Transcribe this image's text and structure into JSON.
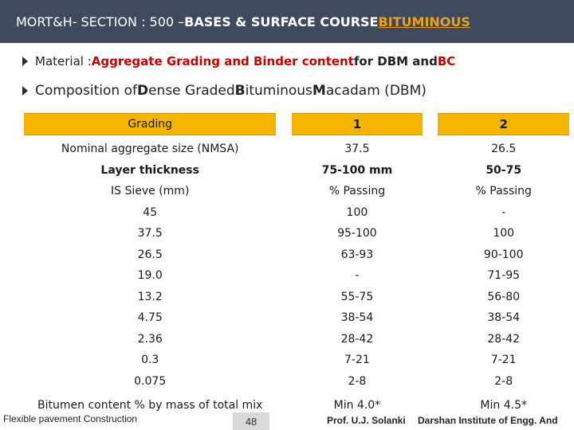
{
  "header": {
    "title_prefix": "MORT&H- SECTION : 500 – ",
    "title_bold": "BASES  & SURFACE COURSE ",
    "title_accent": "BITUMINOUS"
  },
  "bullets": {
    "b1_prefix": "Material : ",
    "b1_red1": "Aggregate Grading and Binder content",
    "b1_mid": " for DBM and ",
    "b1_red2": "BC",
    "b2_p1": "Composition of ",
    "b2_D": "D",
    "b2_p2": "ense Graded ",
    "b2_B": "B",
    "b2_p3": "ituminous ",
    "b2_M": "M",
    "b2_p4": "acadam (DBM)"
  },
  "table": {
    "header": {
      "grading": "Grading",
      "col1": "1",
      "col2": "2"
    },
    "rows_main": {
      "labels": [
        "Nominal aggregate size (NMSA)",
        "Layer thickness",
        "IS Sieve (mm)",
        "45",
        "37.5",
        "26.5",
        "19.0",
        "13.2",
        "4.75",
        "2.36",
        "0.3",
        "0.075"
      ],
      "col1": [
        "37.5",
        "75-100 mm",
        "% Passing",
        "100",
        "95-100",
        "63-93",
        "-",
        "55-75",
        "38-54",
        "28-42",
        "7-21",
        "2-8"
      ],
      "col2": [
        "26.5",
        "50-75",
        "% Passing",
        "-",
        "100",
        "90-100",
        "71-95",
        "56-80",
        "38-54",
        "28-42",
        "7-21",
        "2-8"
      ]
    },
    "bitumen": {
      "label": "Bitumen content % by mass of total mix",
      "col1": "Min 4.0*",
      "col2": "Min 4.5*"
    }
  },
  "footer": {
    "left": "Flexible pavement Construction",
    "page": "48",
    "author": "Prof. U.J. Solanki",
    "institute": "Darshan Institute of Engg. And"
  }
}
